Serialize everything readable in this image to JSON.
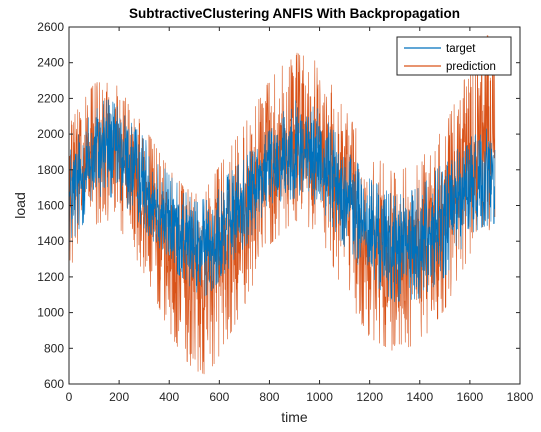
{
  "chart_data": {
    "type": "line",
    "title": "SubtractiveClustering ANFIS With Backpropagation",
    "xlabel": "time",
    "ylabel": "load",
    "xlim": [
      0,
      1800
    ],
    "ylim": [
      600,
      2600
    ],
    "xticks": [
      0,
      200,
      400,
      600,
      800,
      1000,
      1200,
      1400,
      1600,
      1800
    ],
    "yticks": [
      600,
      800,
      1000,
      1200,
      1400,
      1600,
      1800,
      2000,
      2200,
      2400,
      2600
    ],
    "xtick_labels": [
      "0",
      "200",
      "400",
      "600",
      "800",
      "1000",
      "1200",
      "1400",
      "1600",
      "1800"
    ],
    "ytick_labels": [
      "600",
      "800",
      "1000",
      "1200",
      "1400",
      "1600",
      "1800",
      "2000",
      "2200",
      "2400",
      "2600"
    ],
    "grid": false,
    "legend_position": "top-right",
    "series": [
      {
        "name": "target",
        "color": "#0072BD",
        "x_start": 1,
        "x_end": 1700,
        "envelope_x": [
          0,
          100,
          150,
          200,
          300,
          400,
          450,
          500,
          550,
          600,
          700,
          800,
          900,
          1000,
          1100,
          1200,
          1300,
          1400,
          1500,
          1600,
          1650,
          1700
        ],
        "envelope_low": [
          1340,
          1620,
          1650,
          1640,
          1470,
          1250,
          1200,
          1120,
          1090,
          1180,
          1360,
          1610,
          1640,
          1600,
          1370,
          1180,
          1060,
          1080,
          1200,
          1440,
          1480,
          1500
        ],
        "envelope_high": [
          1900,
          2150,
          2220,
          2140,
          1980,
          1770,
          1700,
          1620,
          1640,
          1730,
          1860,
          2050,
          2190,
          2140,
          1930,
          1750,
          1650,
          1700,
          1850,
          1980,
          2020,
          2050
        ]
      },
      {
        "name": "prediction",
        "color": "#D95319",
        "x_start": 1,
        "x_end": 1700,
        "envelope_x": [
          0,
          100,
          150,
          200,
          300,
          400,
          450,
          500,
          550,
          600,
          700,
          800,
          900,
          1000,
          1100,
          1200,
          1300,
          1400,
          1500,
          1600,
          1650,
          1700
        ],
        "envelope_low": [
          1250,
          1490,
          1520,
          1480,
          1220,
          900,
          760,
          680,
          650,
          760,
          1040,
          1380,
          1520,
          1450,
          1100,
          860,
          780,
          830,
          1020,
          1330,
          1420,
          1500
        ],
        "envelope_high": [
          2060,
          2280,
          2320,
          2260,
          2040,
          1800,
          1720,
          1660,
          1700,
          1820,
          2050,
          2300,
          2460,
          2400,
          2140,
          1900,
          1780,
          1850,
          2040,
          2380,
          2560,
          2540
        ]
      }
    ]
  }
}
